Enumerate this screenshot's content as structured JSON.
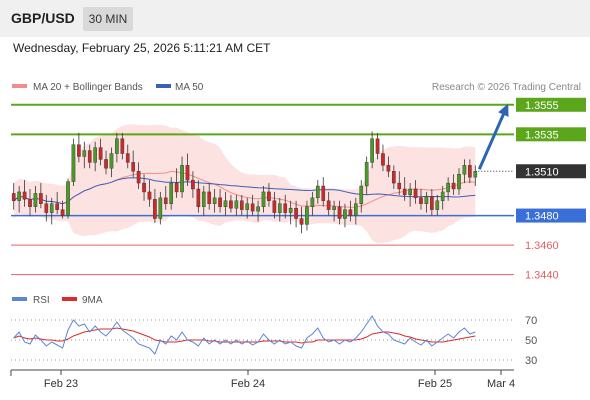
{
  "header": {
    "symbol": "GBP/USD",
    "timeframe": "30 MIN"
  },
  "datetime": "Wednesday, February 25, 2026 5:11:21 AM CET",
  "credit": "Research © 2026 Trading Central",
  "colors": {
    "bollinger": "#f08c8c",
    "bollinger_fill": "#fde2e2",
    "ma50": "#3a60b8",
    "resistance": "#5ba61a",
    "support": "#3a6fd8",
    "support_minor": "#e06060",
    "price_label": "#333333",
    "candle_up": "#4a9a28",
    "candle_down": "#cc2a2a",
    "arrow": "#2e65b3",
    "rsi": "#5b86d8",
    "rsi_ma": "#dd2a2a"
  },
  "chart_data": [
    {
      "type": "candlestick",
      "title": "GBP/USD",
      "legend": [
        {
          "name": "MA 20 + Bollinger Bands",
          "color": "#f08c8c"
        },
        {
          "name": "MA 50",
          "color": "#3a60b8"
        }
      ],
      "x_ticks": [
        "Feb 23",
        "Feb 24",
        "Feb 25",
        "Mar 4"
      ],
      "ylim": [
        1.3433,
        1.3565
      ],
      "levels": [
        {
          "value": 1.3555,
          "label": "1.3555",
          "kind": "resistance"
        },
        {
          "value": 1.3535,
          "label": "1.3535",
          "kind": "resistance"
        },
        {
          "value": 1.351,
          "label": "1.3510",
          "kind": "current"
        },
        {
          "value": 1.348,
          "label": "1.3480",
          "kind": "support"
        },
        {
          "value": 1.346,
          "label": "1.3460",
          "kind": "support_minor"
        },
        {
          "value": 1.344,
          "label": "1.3440",
          "kind": "support_minor"
        }
      ],
      "arrow_target": 1.3555,
      "candles": [
        [
          1.3495,
          1.3502,
          1.3484,
          1.349
        ],
        [
          1.349,
          1.35,
          1.3482,
          1.3496
        ],
        [
          1.3496,
          1.3504,
          1.3486,
          1.3491
        ],
        [
          1.3491,
          1.3498,
          1.348,
          1.3486
        ],
        [
          1.3486,
          1.35,
          1.3482,
          1.3495
        ],
        [
          1.3495,
          1.3502,
          1.3485,
          1.3488
        ],
        [
          1.3488,
          1.3494,
          1.3476,
          1.3482
        ],
        [
          1.3482,
          1.3492,
          1.3474,
          1.3488
        ],
        [
          1.3488,
          1.3496,
          1.3481,
          1.3484
        ],
        [
          1.3484,
          1.349,
          1.3478,
          1.348
        ],
        [
          1.348,
          1.3505,
          1.3478,
          1.3503
        ],
        [
          1.3503,
          1.3532,
          1.35,
          1.3528
        ],
        [
          1.3528,
          1.3536,
          1.3516,
          1.352
        ],
        [
          1.352,
          1.353,
          1.3512,
          1.3524
        ],
        [
          1.3524,
          1.3528,
          1.3512,
          1.3516
        ],
        [
          1.3516,
          1.353,
          1.351,
          1.3526
        ],
        [
          1.3526,
          1.3532,
          1.3514,
          1.3518
        ],
        [
          1.3518,
          1.3524,
          1.3508,
          1.3512
        ],
        [
          1.3512,
          1.3526,
          1.3506,
          1.3522
        ],
        [
          1.3522,
          1.3536,
          1.3516,
          1.3532
        ],
        [
          1.3532,
          1.3536,
          1.3518,
          1.3522
        ],
        [
          1.3522,
          1.3528,
          1.3512,
          1.3516
        ],
        [
          1.3516,
          1.3524,
          1.3506,
          1.351
        ],
        [
          1.351,
          1.3516,
          1.3498,
          1.3502
        ],
        [
          1.3502,
          1.3508,
          1.349,
          1.3496
        ],
        [
          1.3496,
          1.3504,
          1.3486,
          1.3491
        ],
        [
          1.3491,
          1.3498,
          1.3475,
          1.3478
        ],
        [
          1.3478,
          1.3496,
          1.3474,
          1.3492
        ],
        [
          1.3492,
          1.35,
          1.3484,
          1.3488
        ],
        [
          1.3488,
          1.3506,
          1.3484,
          1.3502
        ],
        [
          1.3502,
          1.3512,
          1.3492,
          1.3496
        ],
        [
          1.3496,
          1.352,
          1.3492,
          1.3514
        ],
        [
          1.3514,
          1.3522,
          1.35,
          1.3504
        ],
        [
          1.3504,
          1.351,
          1.3492,
          1.3498
        ],
        [
          1.3498,
          1.3504,
          1.3482,
          1.3486
        ],
        [
          1.3486,
          1.35,
          1.348,
          1.3496
        ],
        [
          1.3496,
          1.3502,
          1.3484,
          1.3488
        ],
        [
          1.3488,
          1.3498,
          1.3482,
          1.3492
        ],
        [
          1.3492,
          1.3498,
          1.3482,
          1.3486
        ],
        [
          1.3486,
          1.3496,
          1.348,
          1.349
        ],
        [
          1.349,
          1.3494,
          1.3482,
          1.3485
        ],
        [
          1.3485,
          1.3494,
          1.348,
          1.349
        ],
        [
          1.349,
          1.3494,
          1.348,
          1.3484
        ],
        [
          1.3484,
          1.3492,
          1.3478,
          1.3488
        ],
        [
          1.3488,
          1.3494,
          1.348,
          1.3483
        ],
        [
          1.3483,
          1.349,
          1.3476,
          1.3486
        ],
        [
          1.3486,
          1.35,
          1.3482,
          1.3496
        ],
        [
          1.3496,
          1.3502,
          1.3486,
          1.349
        ],
        [
          1.349,
          1.3496,
          1.3478,
          1.3482
        ],
        [
          1.3482,
          1.3492,
          1.3476,
          1.3488
        ],
        [
          1.3488,
          1.3494,
          1.3478,
          1.3482
        ],
        [
          1.3482,
          1.349,
          1.3474,
          1.3485
        ],
        [
          1.3485,
          1.349,
          1.3472,
          1.3478
        ],
        [
          1.3478,
          1.3486,
          1.3468,
          1.3474
        ],
        [
          1.3474,
          1.349,
          1.347,
          1.3486
        ],
        [
          1.3486,
          1.3496,
          1.348,
          1.3492
        ],
        [
          1.3492,
          1.3504,
          1.3488,
          1.35
        ],
        [
          1.35,
          1.3506,
          1.3486,
          1.349
        ],
        [
          1.349,
          1.3496,
          1.348,
          1.3484
        ],
        [
          1.3484,
          1.349,
          1.3476,
          1.3486
        ],
        [
          1.3486,
          1.349,
          1.3474,
          1.3478
        ],
        [
          1.3478,
          1.3488,
          1.3472,
          1.3484
        ],
        [
          1.3484,
          1.349,
          1.3476,
          1.348
        ],
        [
          1.348,
          1.3492,
          1.3474,
          1.3488
        ],
        [
          1.3488,
          1.3504,
          1.3482,
          1.35
        ],
        [
          1.35,
          1.352,
          1.3494,
          1.3516
        ],
        [
          1.3516,
          1.3537,
          1.3512,
          1.3532
        ],
        [
          1.3532,
          1.3536,
          1.3518,
          1.3522
        ],
        [
          1.3522,
          1.3528,
          1.351,
          1.3514
        ],
        [
          1.3514,
          1.352,
          1.3506,
          1.351
        ],
        [
          1.351,
          1.3514,
          1.3498,
          1.3502
        ],
        [
          1.3502,
          1.351,
          1.3494,
          1.3498
        ],
        [
          1.3498,
          1.3506,
          1.349,
          1.3494
        ],
        [
          1.3494,
          1.3502,
          1.3486,
          1.3498
        ],
        [
          1.3498,
          1.3504,
          1.3488,
          1.3492
        ],
        [
          1.3492,
          1.3498,
          1.3484,
          1.3488
        ],
        [
          1.3488,
          1.3496,
          1.3482,
          1.3493
        ],
        [
          1.3493,
          1.3498,
          1.348,
          1.3484
        ],
        [
          1.3484,
          1.3494,
          1.348,
          1.349
        ],
        [
          1.349,
          1.35,
          1.3484,
          1.3496
        ],
        [
          1.3496,
          1.3506,
          1.349,
          1.3502
        ],
        [
          1.3502,
          1.3508,
          1.3494,
          1.3498
        ],
        [
          1.3498,
          1.3512,
          1.3494,
          1.3508
        ],
        [
          1.3508,
          1.3518,
          1.3502,
          1.3514
        ],
        [
          1.3514,
          1.3518,
          1.3502,
          1.3506
        ],
        [
          1.3506,
          1.3514,
          1.35,
          1.351
        ]
      ],
      "ma20_end": 1.3506,
      "ma50_end": 1.3498
    },
    {
      "type": "line",
      "title": "RSI",
      "legend": [
        {
          "name": "RSI",
          "color": "#5b86d8"
        },
        {
          "name": "9MA",
          "color": "#dd2a2a"
        }
      ],
      "y_ticks": [
        70,
        50,
        30
      ],
      "ylim": [
        20,
        80
      ],
      "series": [
        {
          "name": "RSI",
          "values": [
            52,
            58,
            48,
            46,
            55,
            50,
            44,
            48,
            45,
            42,
            60,
            70,
            64,
            66,
            58,
            64,
            58,
            54,
            60,
            68,
            60,
            56,
            52,
            46,
            44,
            42,
            36,
            50,
            46,
            54,
            50,
            58,
            50,
            48,
            44,
            52,
            46,
            50,
            46,
            50,
            46,
            50,
            46,
            49,
            45,
            48,
            56,
            50,
            46,
            50,
            46,
            48,
            44,
            42,
            52,
            56,
            62,
            52,
            48,
            50,
            46,
            50,
            48,
            52,
            58,
            66,
            74,
            64,
            58,
            56,
            50,
            48,
            46,
            52,
            48,
            45,
            50,
            44,
            48,
            52,
            56,
            52,
            58,
            62,
            56,
            58
          ]
        },
        {
          "name": "9MA",
          "values": [
            52,
            54,
            52,
            51,
            52,
            51,
            50,
            50,
            49,
            49,
            51,
            54,
            56,
            58,
            59,
            60,
            61,
            61,
            61,
            62,
            61,
            60,
            59,
            57,
            55,
            53,
            50,
            49,
            48,
            48,
            48,
            49,
            50,
            50,
            50,
            50,
            49,
            49,
            48,
            48,
            48,
            48,
            48,
            48,
            48,
            48,
            49,
            49,
            49,
            49,
            48,
            48,
            48,
            47,
            48,
            48,
            50,
            50,
            50,
            50,
            50,
            50,
            50,
            50,
            51,
            53,
            56,
            57,
            58,
            58,
            57,
            56,
            54,
            53,
            51,
            50,
            49,
            48,
            48,
            48,
            49,
            50,
            51,
            52,
            53,
            54
          ]
        }
      ]
    }
  ]
}
